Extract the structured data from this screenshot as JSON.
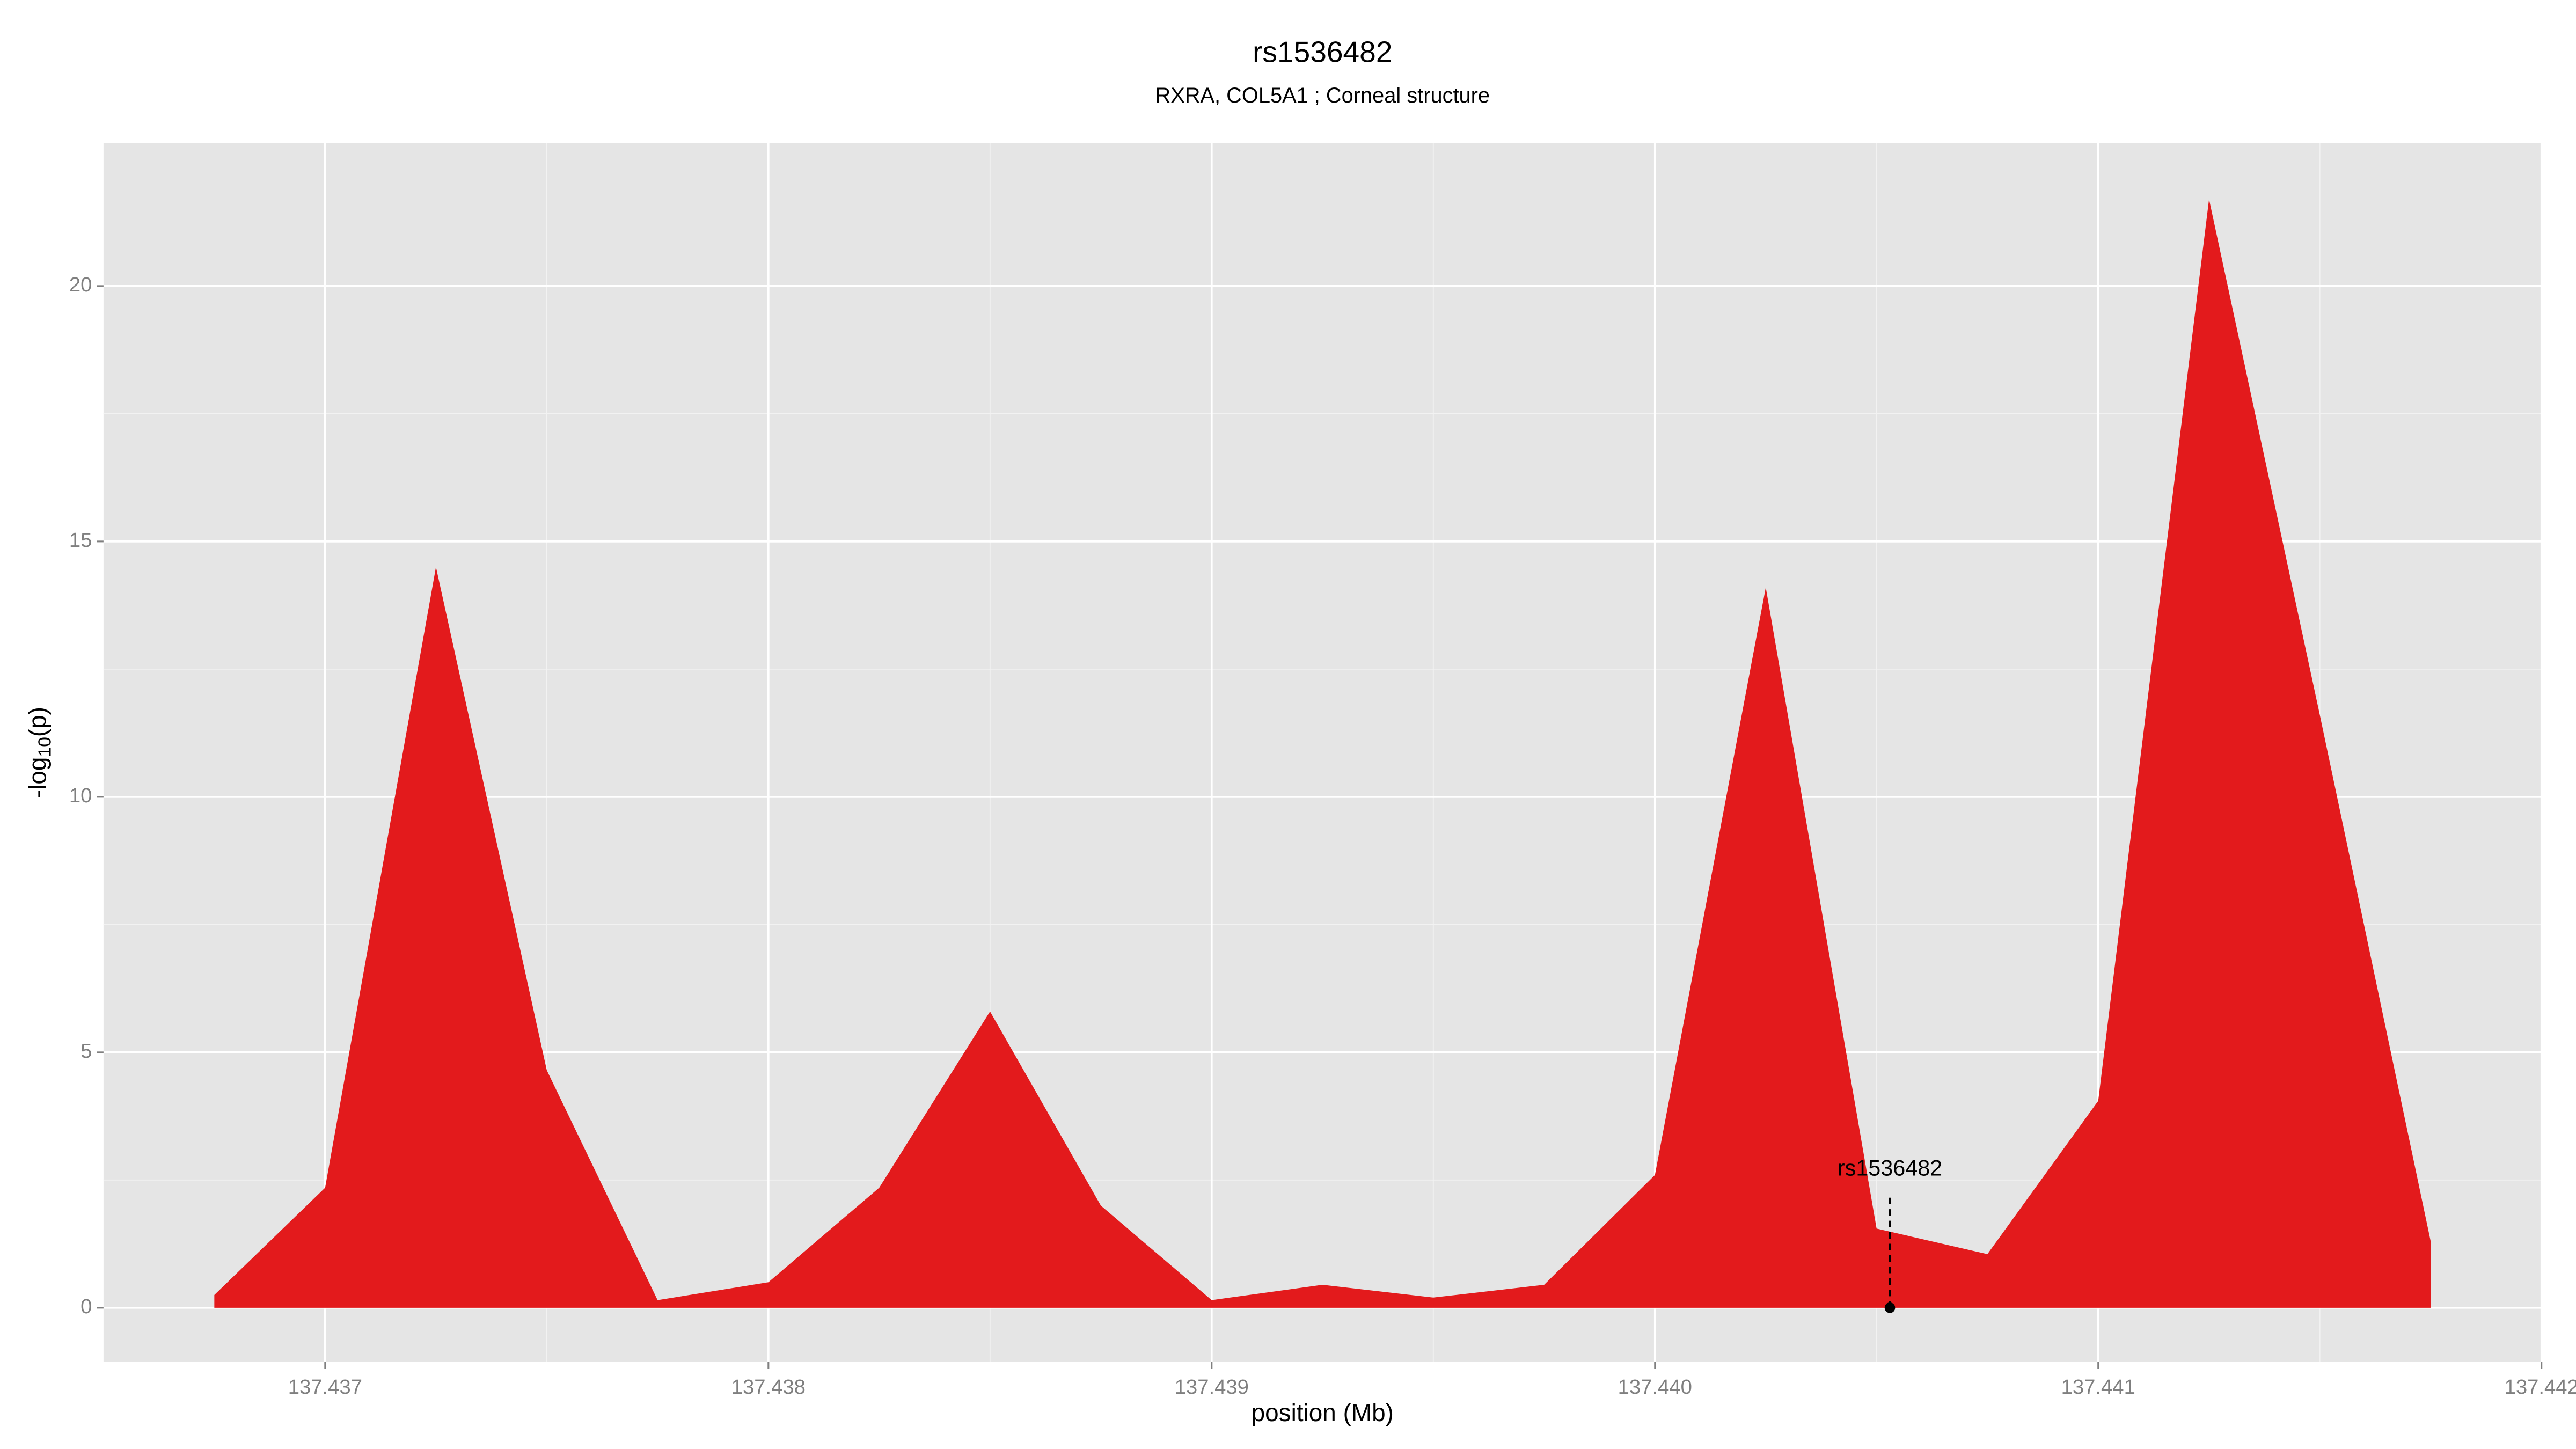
{
  "chart_data": {
    "type": "area",
    "title": "rs1536482",
    "subtitle": "RXRA, COL5A1 ; Corneal structure",
    "x_label": "position (Mb)",
    "y_label": {
      "prefix": "-log",
      "sub": "10",
      "suffix": "(p)"
    },
    "x": [
      137.43675,
      137.437,
      137.43725,
      137.4375,
      137.43775,
      137.438,
      137.43825,
      137.4385,
      137.43875,
      137.439,
      137.43925,
      137.4395,
      137.43975,
      137.44,
      137.44025,
      137.4405,
      137.44075,
      137.441,
      137.44125,
      137.4415,
      137.44175
    ],
    "values": [
      0.25,
      2.35,
      14.5,
      4.65,
      0.15,
      0.5,
      2.35,
      5.8,
      2.0,
      0.15,
      0.45,
      0.2,
      0.45,
      2.6,
      14.1,
      1.55,
      1.05,
      4.05,
      21.7,
      11.6,
      1.3
    ],
    "color": "#e31a1c",
    "xlim": [
      137.4365,
      137.442
    ],
    "ylim": [
      -1.06,
      22.8
    ],
    "xticks": [
      137.437,
      137.438,
      137.439,
      {
        "value": 137.44,
        "label": "137.440"
      },
      137.441,
      {
        "value": 137.442,
        "label": "137.442"
      }
    ],
    "yticks": [
      0,
      5,
      10,
      15,
      20
    ],
    "grid": true,
    "annotation": {
      "label": "rs1536482",
      "x": 137.44053
    }
  }
}
